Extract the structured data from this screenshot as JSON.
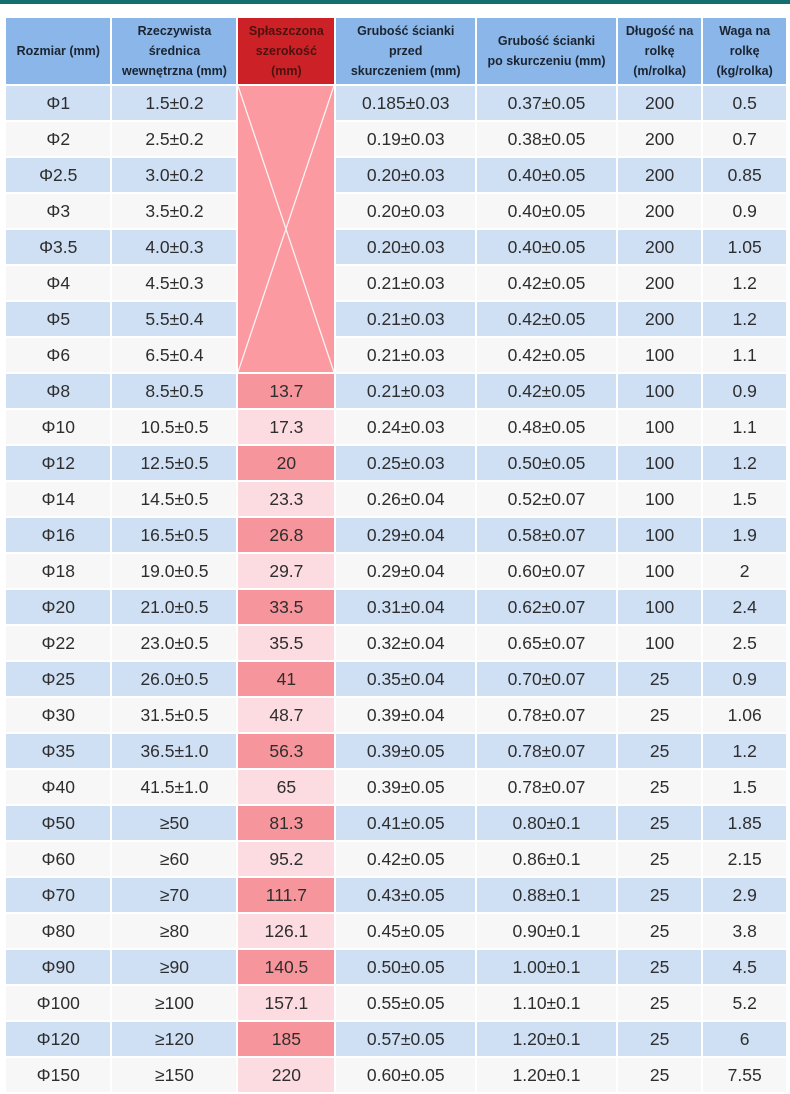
{
  "colors": {
    "top_bar": "#156f70",
    "header_background": "#8ab6e9",
    "highlight_header_background": "#cb2127",
    "highlight_header_text": "#4e120f",
    "row_stripe_blue": "#cfdff4",
    "row_stripe_white": "#f7f7f7",
    "flat_width_cell_dark_pink": "#f7959c",
    "flat_width_cell_light_pink": "#fcdce0",
    "merged_crossed_cell_pink": "#fb9aa0"
  },
  "chart_data": {
    "type": "table",
    "title": "",
    "columns": [
      "Rozmiar (mm)",
      "Rzeczywista\nśrednica\nwewnętrzna (mm)",
      "Spłaszczona\nszerokość (mm)",
      "Grubość ścianki\nprzed\nskurczeniem (mm)",
      "Grubość ścianki\npo skurczeniu (mm)",
      "Długość na\nrolkę (m/rolka)",
      "Waga na\nrolkę (kg/rolka)"
    ],
    "merged_flat_width_cell": {
      "row_span": "Φ1 to Φ6",
      "content": "crossed out with white X, no value"
    },
    "rows": [
      [
        "Φ1",
        "1.5±0.2",
        null,
        "0.185±0.03",
        "0.37±0.05",
        "200",
        "0.5"
      ],
      [
        "Φ2",
        "2.5±0.2",
        null,
        "0.19±0.03",
        "0.38±0.05",
        "200",
        "0.7"
      ],
      [
        "Φ2.5",
        "3.0±0.2",
        null,
        "0.20±0.03",
        "0.40±0.05",
        "200",
        "0.85"
      ],
      [
        "Φ3",
        "3.5±0.2",
        null,
        "0.20±0.03",
        "0.40±0.05",
        "200",
        "0.9"
      ],
      [
        "Φ3.5",
        "4.0±0.3",
        null,
        "0.20±0.03",
        "0.40±0.05",
        "200",
        "1.05"
      ],
      [
        "Φ4",
        "4.5±0.3",
        null,
        "0.21±0.03",
        "0.42±0.05",
        "200",
        "1.2"
      ],
      [
        "Φ5",
        "5.5±0.4",
        null,
        "0.21±0.03",
        "0.42±0.05",
        "200",
        "1.2"
      ],
      [
        "Φ6",
        "6.5±0.4",
        null,
        "0.21±0.03",
        "0.42±0.05",
        "100",
        "1.1"
      ],
      [
        "Φ8",
        "8.5±0.5",
        "13.7",
        "0.21±0.03",
        "0.42±0.05",
        "100",
        "0.9"
      ],
      [
        "Φ10",
        "10.5±0.5",
        "17.3",
        "0.24±0.03",
        "0.48±0.05",
        "100",
        "1.1"
      ],
      [
        "Φ12",
        "12.5±0.5",
        "20",
        "0.25±0.03",
        "0.50±0.05",
        "100",
        "1.2"
      ],
      [
        "Φ14",
        "14.5±0.5",
        "23.3",
        "0.26±0.04",
        "0.52±0.07",
        "100",
        "1.5"
      ],
      [
        "Φ16",
        "16.5±0.5",
        "26.8",
        "0.29±0.04",
        "0.58±0.07",
        "100",
        "1.9"
      ],
      [
        "Φ18",
        "19.0±0.5",
        "29.7",
        "0.29±0.04",
        "0.60±0.07",
        "100",
        "2"
      ],
      [
        "Φ20",
        "21.0±0.5",
        "33.5",
        "0.31±0.04",
        "0.62±0.07",
        "100",
        "2.4"
      ],
      [
        "Φ22",
        "23.0±0.5",
        "35.5",
        "0.32±0.04",
        "0.65±0.07",
        "100",
        "2.5"
      ],
      [
        "Φ25",
        "26.0±0.5",
        "41",
        "0.35±0.04",
        "0.70±0.07",
        "25",
        "0.9"
      ],
      [
        "Φ30",
        "31.5±0.5",
        "48.7",
        "0.39±0.04",
        "0.78±0.07",
        "25",
        "1.06"
      ],
      [
        "Φ35",
        "36.5±1.0",
        "56.3",
        "0.39±0.05",
        "0.78±0.07",
        "25",
        "1.2"
      ],
      [
        "Φ40",
        "41.5±1.0",
        "65",
        "0.39±0.05",
        "0.78±0.07",
        "25",
        "1.5"
      ],
      [
        "Φ50",
        "≥50",
        "81.3",
        "0.41±0.05",
        "0.80±0.1",
        "25",
        "1.85"
      ],
      [
        "Φ60",
        "≥60",
        "95.2",
        "0.42±0.05",
        "0.86±0.1",
        "25",
        "2.15"
      ],
      [
        "Φ70",
        "≥70",
        "111.7",
        "0.43±0.05",
        "0.88±0.1",
        "25",
        "2.9"
      ],
      [
        "Φ80",
        "≥80",
        "126.1",
        "0.45±0.05",
        "0.90±0.1",
        "25",
        "3.8"
      ],
      [
        "Φ90",
        "≥90",
        "140.5",
        "0.50±0.05",
        "1.00±0.1",
        "25",
        "4.5"
      ],
      [
        "Φ100",
        "≥100",
        "157.1",
        "0.55±0.05",
        "1.10±0.1",
        "25",
        "5.2"
      ],
      [
        "Φ120",
        "≥120",
        "185",
        "0.57±0.05",
        "1.20±0.1",
        "25",
        "6"
      ],
      [
        "Φ150",
        "≥150",
        "220",
        "0.60±0.05",
        "1.20±0.1",
        "25",
        "7.55"
      ]
    ]
  }
}
